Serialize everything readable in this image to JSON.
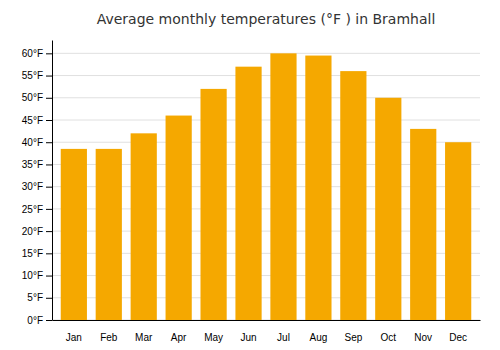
{
  "chart_data": {
    "type": "bar",
    "title": "Average monthly temperatures (°F ) in Bramhall",
    "categories": [
      "Jan",
      "Feb",
      "Mar",
      "Apr",
      "May",
      "Jun",
      "Jul",
      "Aug",
      "Sep",
      "Oct",
      "Nov",
      "Dec"
    ],
    "values": [
      38.5,
      38.5,
      42.0,
      46.0,
      52.0,
      57.0,
      60.0,
      59.5,
      56.0,
      50.0,
      43.0,
      40.0
    ],
    "color": "#F5A800",
    "ylim": [
      0,
      63
    ],
    "yticks": [
      {
        "value": 0,
        "label": "0°F"
      },
      {
        "value": 5,
        "label": "5°F"
      },
      {
        "value": 10,
        "label": "10°F"
      },
      {
        "value": 15,
        "label": "15°F"
      },
      {
        "value": 20,
        "label": "20°F"
      },
      {
        "value": 25,
        "label": "25°F"
      },
      {
        "value": 30,
        "label": "30°F"
      },
      {
        "value": 35,
        "label": "35°F"
      },
      {
        "value": 40,
        "label": "40°F"
      },
      {
        "value": 45,
        "label": "45°F"
      },
      {
        "value": 50,
        "label": "50°F"
      },
      {
        "value": 55,
        "label": "55°F"
      },
      {
        "value": 60,
        "label": "60°F"
      }
    ],
    "grid": true
  }
}
